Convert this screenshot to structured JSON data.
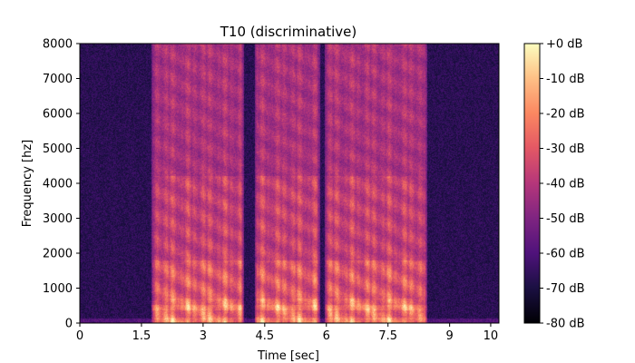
{
  "chart_data": {
    "type": "heatmap",
    "title": "T10 (discriminative)",
    "xlabel": "Time [sec]",
    "ylabel": "Frequency [hz]",
    "xlim": [
      0,
      10.2
    ],
    "ylim": [
      0,
      8000
    ],
    "xticks": [
      0,
      1.5,
      3,
      4.5,
      6,
      7.5,
      9,
      10
    ],
    "xtick_labels": [
      "0",
      "1.5",
      "3",
      "4.5",
      "6",
      "7.5",
      "9",
      "10"
    ],
    "yticks": [
      0,
      1000,
      2000,
      3000,
      4000,
      5000,
      6000,
      7000,
      8000
    ],
    "ytick_labels": [
      "0",
      "1000",
      "2000",
      "3000",
      "4000",
      "5000",
      "6000",
      "7000",
      "8000"
    ],
    "colorbar": {
      "range_db": [
        -80,
        0
      ],
      "ticks": [
        0,
        -10,
        -20,
        -30,
        -40,
        -50,
        -60,
        -70,
        -80
      ],
      "tick_labels": [
        "+0 dB",
        "-10 dB",
        "-20 dB",
        "-30 dB",
        "-40 dB",
        "-50 dB",
        "-60 dB",
        "-70 dB",
        "-80 dB"
      ],
      "colormap": "magma"
    },
    "speech_regions_sec": [
      [
        1.75,
        4.0
      ],
      [
        4.25,
        5.85
      ],
      [
        5.95,
        8.45
      ]
    ],
    "bright_band_hz": [
      0,
      1800
    ],
    "background_level_db": -72,
    "peak_level_db": -10
  }
}
